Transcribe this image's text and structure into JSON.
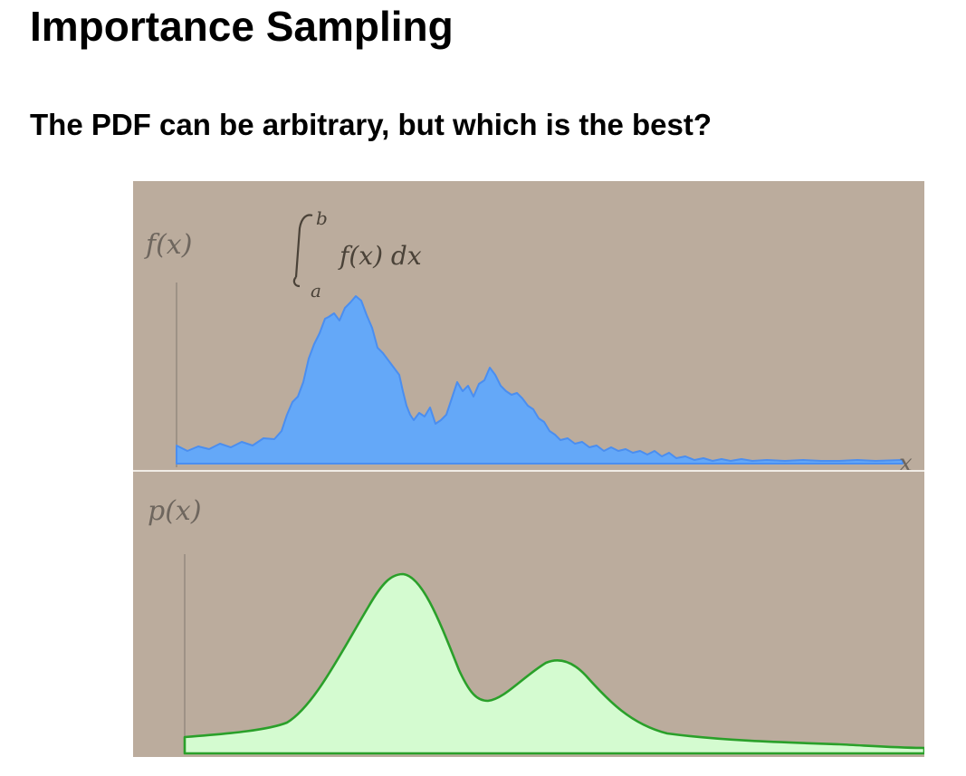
{
  "slide": {
    "title": "Importance Sampling",
    "subtitle": "The PDF can be arbitrary, but which is the best?"
  },
  "figure": {
    "top_panel": {
      "y_label": "f(x)",
      "x_label": "x",
      "integral_upper": "b",
      "integral_lower": "a",
      "integrand": "f(x) dx",
      "fill_color": "#64a8f8",
      "stroke_color": "#4a8ef0"
    },
    "bottom_panel": {
      "y_label": "p(x)",
      "fill_color": "#d4fbd0",
      "stroke_color": "#2aa02a"
    },
    "background_color": "#bbac9d"
  },
  "chart_data": [
    {
      "type": "area",
      "title": "",
      "xlabel": "x",
      "ylabel": "f(x)",
      "description_curve": "noisy function with two peaks",
      "x": [
        0.0,
        0.05,
        0.1,
        0.15,
        0.18,
        0.2,
        0.22,
        0.24,
        0.26,
        0.28,
        0.3,
        0.32,
        0.34,
        0.36,
        0.38,
        0.4,
        0.42,
        0.44,
        0.46,
        0.5,
        0.55,
        0.6,
        0.65,
        0.7,
        0.8,
        0.9,
        1.0
      ],
      "values": [
        0.03,
        0.05,
        0.08,
        0.22,
        0.4,
        0.72,
        0.85,
        1.0,
        0.76,
        0.55,
        0.36,
        0.2,
        0.24,
        0.3,
        0.42,
        0.5,
        0.36,
        0.3,
        0.2,
        0.1,
        0.07,
        0.05,
        0.05,
        0.03,
        0.02,
        0.01,
        0.01
      ]
    },
    {
      "type": "area",
      "title": "",
      "xlabel": "",
      "ylabel": "p(x)",
      "x": [
        0.0,
        0.1,
        0.15,
        0.2,
        0.24,
        0.28,
        0.32,
        0.36,
        0.41,
        0.46,
        0.52,
        0.6,
        0.7,
        0.85,
        1.0
      ],
      "values": [
        0.05,
        0.1,
        0.35,
        0.85,
        1.0,
        0.75,
        0.3,
        0.22,
        0.52,
        0.45,
        0.12,
        0.05,
        0.03,
        0.02,
        0.02
      ]
    }
  ]
}
